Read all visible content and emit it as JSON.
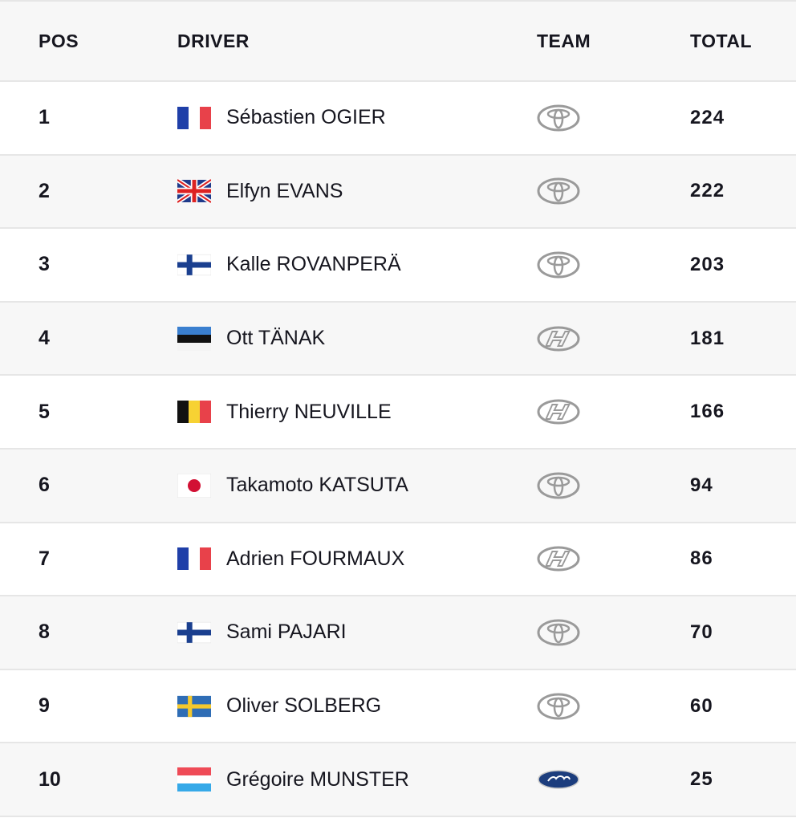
{
  "header": {
    "pos": "POS",
    "driver": "DRIVER",
    "team": "TEAM",
    "total": "TOTAL"
  },
  "rows": [
    {
      "pos": "1",
      "flag": "flag-france",
      "driver": "Sébastien OGIER",
      "team": "toyota-logo",
      "total": "224"
    },
    {
      "pos": "2",
      "flag": "flag-united-kingdom",
      "driver": "Elfyn EVANS",
      "team": "toyota-logo",
      "total": "222"
    },
    {
      "pos": "3",
      "flag": "flag-finland",
      "driver": "Kalle ROVANPERÄ",
      "team": "toyota-logo",
      "total": "203"
    },
    {
      "pos": "4",
      "flag": "flag-estonia",
      "driver": "Ott TÄNAK",
      "team": "hyundai-logo",
      "total": "181"
    },
    {
      "pos": "5",
      "flag": "flag-belgium",
      "driver": "Thierry NEUVILLE",
      "team": "hyundai-logo",
      "total": "166"
    },
    {
      "pos": "6",
      "flag": "flag-japan",
      "driver": "Takamoto KATSUTA",
      "team": "toyota-logo",
      "total": "94"
    },
    {
      "pos": "7",
      "flag": "flag-france",
      "driver": "Adrien FOURMAUX",
      "team": "hyundai-logo",
      "total": "86"
    },
    {
      "pos": "8",
      "flag": "flag-finland",
      "driver": "Sami PAJARI",
      "team": "toyota-logo",
      "total": "70"
    },
    {
      "pos": "9",
      "flag": "flag-sweden",
      "driver": "Oliver SOLBERG",
      "team": "toyota-logo",
      "total": "60"
    },
    {
      "pos": "10",
      "flag": "flag-luxembourg",
      "driver": "Grégoire MUNSTER",
      "team": "ford-logo",
      "total": "25"
    }
  ],
  "colors": {
    "row_alt": "#f7f7f7",
    "divider": "#e6e6e6",
    "text": "#16161f"
  }
}
